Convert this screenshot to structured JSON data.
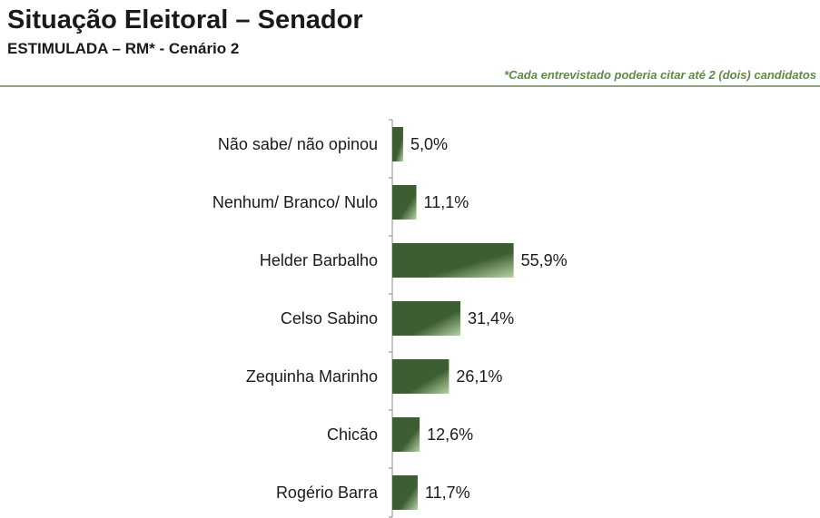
{
  "header": {
    "title": "Situação Eleitoral – Senador",
    "subtitle": "ESTIMULADA – RM* - Cenário 2",
    "note": "*Cada entrevistado poderia citar até 2 (dois) candidatos"
  },
  "colors": {
    "bar_dark": "#3d5e33",
    "bar_light": "#b8d3a4",
    "note_green": "#5f8a47",
    "rule": "#8fa67e"
  },
  "chart_data": {
    "type": "bar",
    "orientation": "horizontal",
    "categories": [
      "Não sabe/ não opinou",
      "Nenhum/ Branco/ Nulo",
      "Helder Barbalho",
      "Celso Sabino",
      "Zequinha Marinho",
      "Chicão",
      "Rogério Barra"
    ],
    "values": [
      5.0,
      11.1,
      55.9,
      31.4,
      26.1,
      12.6,
      11.7
    ],
    "value_labels": [
      "5,0%",
      "11,1%",
      "55,9%",
      "31,4%",
      "26,1%",
      "12,6%",
      "11,7%"
    ],
    "unit": "%",
    "xlim": [
      0,
      100
    ],
    "grid": false,
    "legend": "none"
  }
}
